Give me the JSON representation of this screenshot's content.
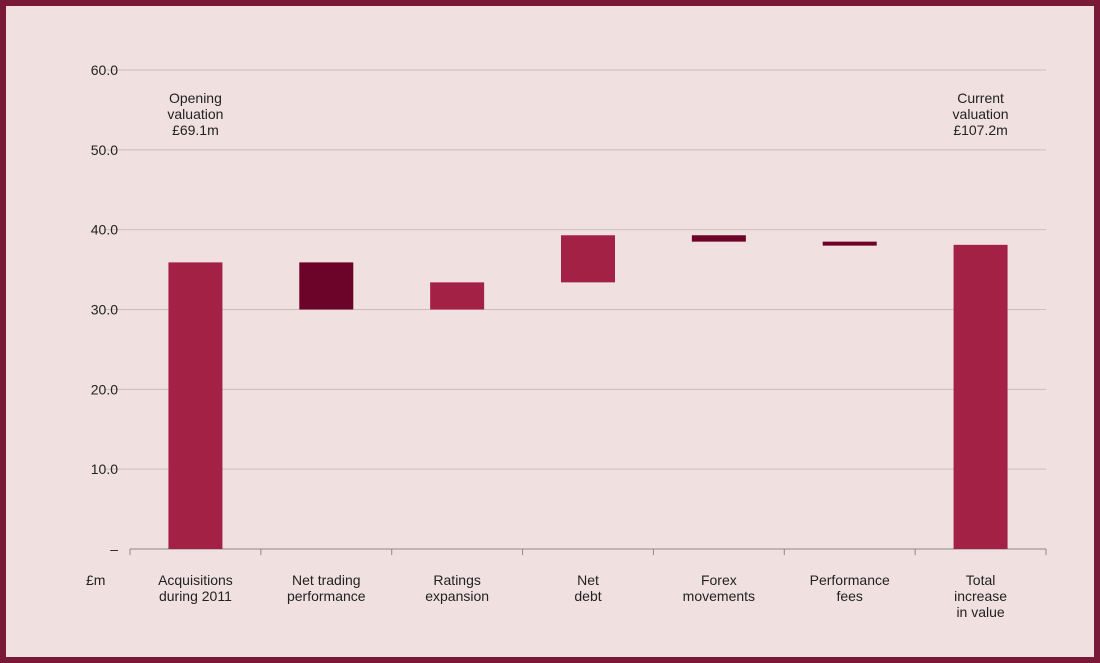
{
  "colors": {
    "frame": "#7a1838",
    "background": "#f1e0e0",
    "increase": "#a32145",
    "decrease": "#6b0428",
    "grid": "#cdbcbe",
    "axis": "#8a8a8a"
  },
  "chart_data": {
    "type": "bar",
    "subtype": "waterfall",
    "unit_label": "£m",
    "ylim": [
      0,
      60
    ],
    "y_ticks": [
      {
        "value": 0,
        "label": "–"
      },
      {
        "value": 10,
        "label": "10.0"
      },
      {
        "value": 20,
        "label": "20.0"
      },
      {
        "value": 30,
        "label": "30.0"
      },
      {
        "value": 40,
        "label": "40.0"
      },
      {
        "value": 50,
        "label": "50.0"
      },
      {
        "value": 60,
        "label": "60.0"
      }
    ],
    "grid": true,
    "bars": [
      {
        "label_lines": [
          "Acquisitions",
          "during 2011"
        ],
        "start": 0,
        "end": 35.9,
        "kind": "increase"
      },
      {
        "label_lines": [
          "Net trading",
          "performance"
        ],
        "start": 35.9,
        "end": 30.0,
        "kind": "decrease"
      },
      {
        "label_lines": [
          "Ratings",
          "expansion"
        ],
        "start": 30.0,
        "end": 33.4,
        "kind": "increase"
      },
      {
        "label_lines": [
          "Net",
          "debt"
        ],
        "start": 33.4,
        "end": 39.3,
        "kind": "increase"
      },
      {
        "label_lines": [
          "Forex",
          "movements"
        ],
        "start": 39.3,
        "end": 38.5,
        "kind": "decrease"
      },
      {
        "label_lines": [
          "Performance",
          "fees"
        ],
        "start": 38.5,
        "end": 38.0,
        "kind": "decrease"
      },
      {
        "label_lines": [
          "Total",
          "increase",
          "in value"
        ],
        "start": 0,
        "end": 38.1,
        "kind": "increase"
      }
    ],
    "annotations": [
      {
        "lines": [
          "Opening",
          "valuation",
          "£69.1m"
        ],
        "category_index": 0
      },
      {
        "lines": [
          "Current",
          "valuation",
          "£107.2m"
        ],
        "category_index": 6
      }
    ]
  }
}
